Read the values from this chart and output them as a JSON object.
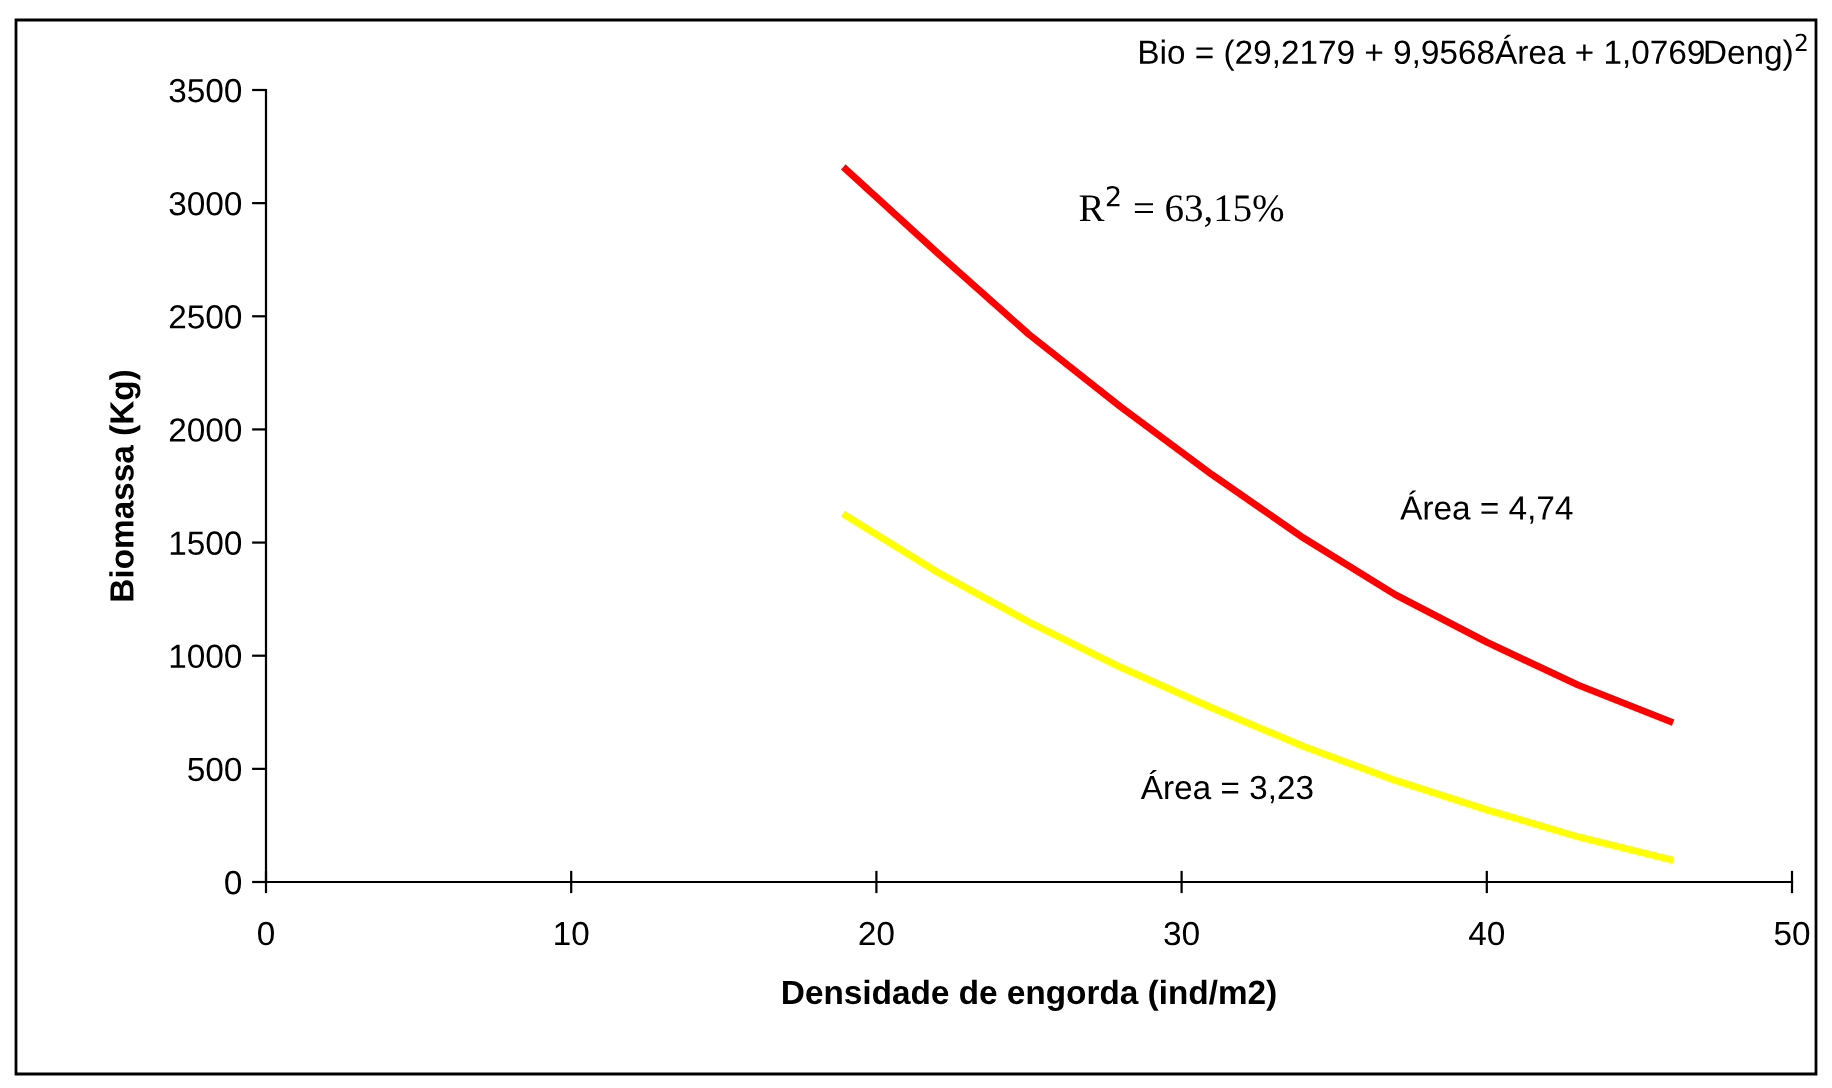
{
  "chart_data": {
    "type": "line",
    "xlabel": "Densidade de engorda (ind/m2)",
    "ylabel": "Biomassa (Kg)",
    "x": [
      19,
      22,
      25,
      28,
      31,
      34,
      37,
      40,
      43,
      46
    ],
    "series": [
      {
        "color": "#ff0000",
        "values": [
          3150,
          2780,
          2420,
          2100,
          1800,
          1520,
          1270,
          1060,
          870,
          710
        ]
      },
      {
        "color": "#ffff00",
        "values": [
          1620,
          1370,
          1150,
          950,
          770,
          600,
          450,
          320,
          200,
          100
        ]
      }
    ],
    "annotations": [
      "Bio = (29,2179 + 9,9568Área + 1,0769Deng)$^{2}$",
      "R$^{2}$ = 63,15%",
      "Área = 4,74",
      "Área = 3,23"
    ],
    "xlim": [
      0,
      50
    ],
    "xticks": [
      0,
      10,
      20,
      30,
      40,
      50
    ],
    "ylim": [
      0,
      3500
    ],
    "yticks": [
      0,
      500,
      1000,
      1500,
      2000,
      2500,
      3000,
      3500
    ],
    "grid": false,
    "legend": false,
    "marker": "none",
    "line_style": "solid"
  }
}
